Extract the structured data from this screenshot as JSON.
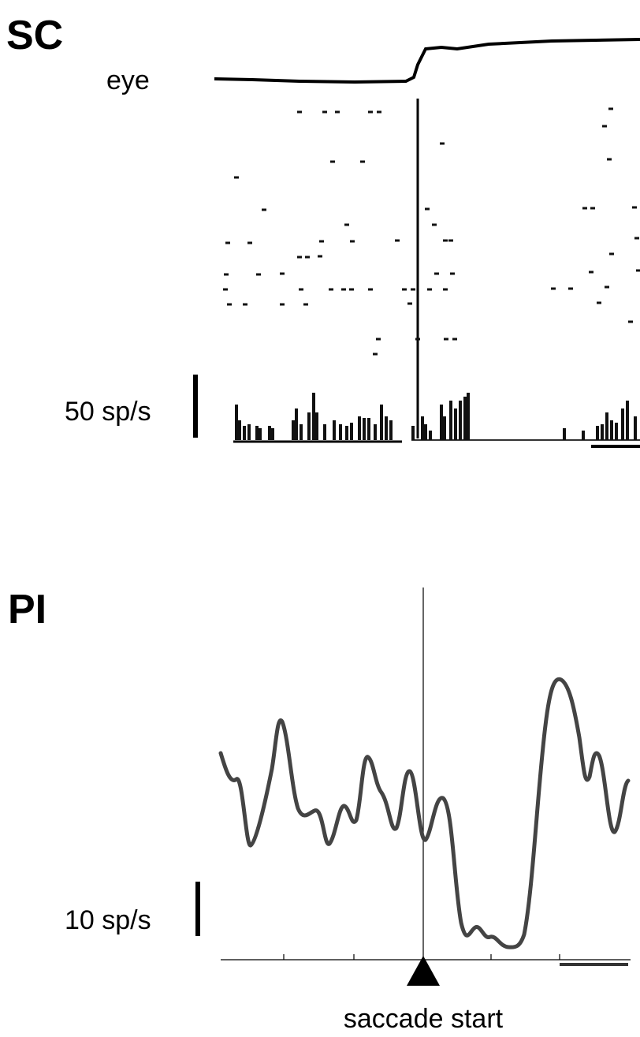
{
  "panels": [
    {
      "label": "SC",
      "eye_label": "eye",
      "scale_label": "50 sp/s"
    },
    {
      "label": "PI",
      "scale_label": "10 sp/s",
      "event_label": "saccade start"
    }
  ]
}
